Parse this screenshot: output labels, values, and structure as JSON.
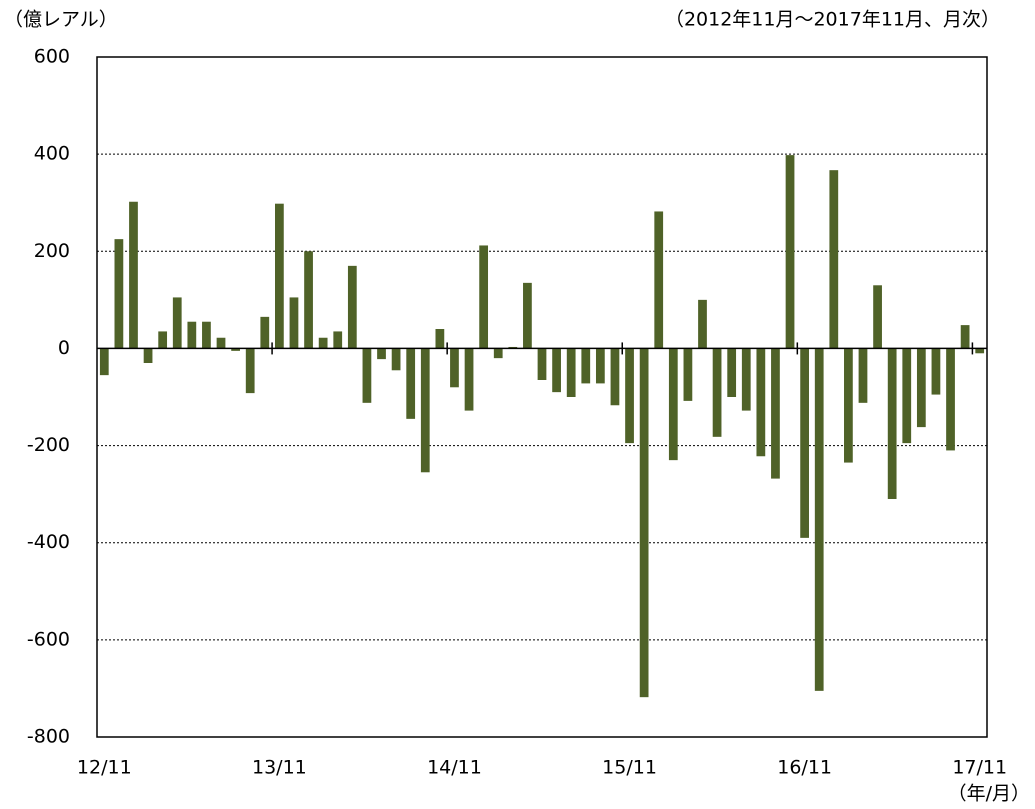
{
  "chart_data": {
    "type": "bar",
    "unit_label": "（億レアル）",
    "subtitle": "（2012年11月～2017年11月、月次）",
    "x_label": "（年/月）",
    "categories": [
      "12/11",
      null,
      null,
      null,
      null,
      null,
      null,
      null,
      null,
      null,
      null,
      null,
      "13/11",
      null,
      null,
      null,
      null,
      null,
      null,
      null,
      null,
      null,
      null,
      null,
      "14/11",
      null,
      null,
      null,
      null,
      null,
      null,
      null,
      null,
      null,
      null,
      null,
      "15/11",
      null,
      null,
      null,
      null,
      null,
      null,
      null,
      null,
      null,
      null,
      null,
      "16/11",
      null,
      null,
      null,
      null,
      null,
      null,
      null,
      null,
      null,
      null,
      null,
      "17/11"
    ],
    "values": [
      -55,
      225,
      302,
      -30,
      35,
      105,
      55,
      55,
      22,
      -5,
      -92,
      65,
      298,
      105,
      200,
      22,
      35,
      170,
      -112,
      -22,
      -45,
      -145,
      -255,
      40,
      -80,
      -128,
      212,
      -20,
      3,
      135,
      -65,
      -90,
      -100,
      -72,
      -72,
      -117,
      -195,
      -718,
      282,
      -230,
      -108,
      100,
      -182,
      -100,
      -128,
      -222,
      -268,
      398,
      -390,
      -705,
      367,
      -235,
      -112,
      130,
      -310,
      -195,
      -162,
      -95,
      -210,
      48,
      -10
    ],
    "color": "#4f6228",
    "ylim": [
      -800,
      600
    ],
    "yticks": [
      -800,
      -600,
      -400,
      -200,
      0,
      200,
      400,
      600
    ],
    "grid": true
  }
}
